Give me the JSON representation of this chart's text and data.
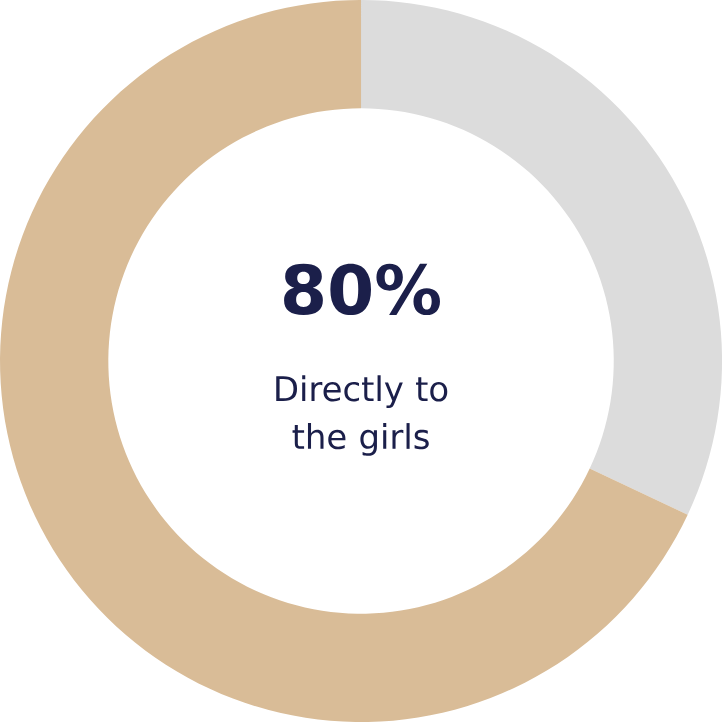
{
  "chart_data": {
    "type": "donut",
    "categories": [
      null,
      null
    ],
    "values": [
      32,
      68
    ],
    "colors": [
      "#dcdcdc",
      "#d9bc97"
    ],
    "annotations": [
      "**80%**",
      "Directly to the girls"
    ]
  }
}
